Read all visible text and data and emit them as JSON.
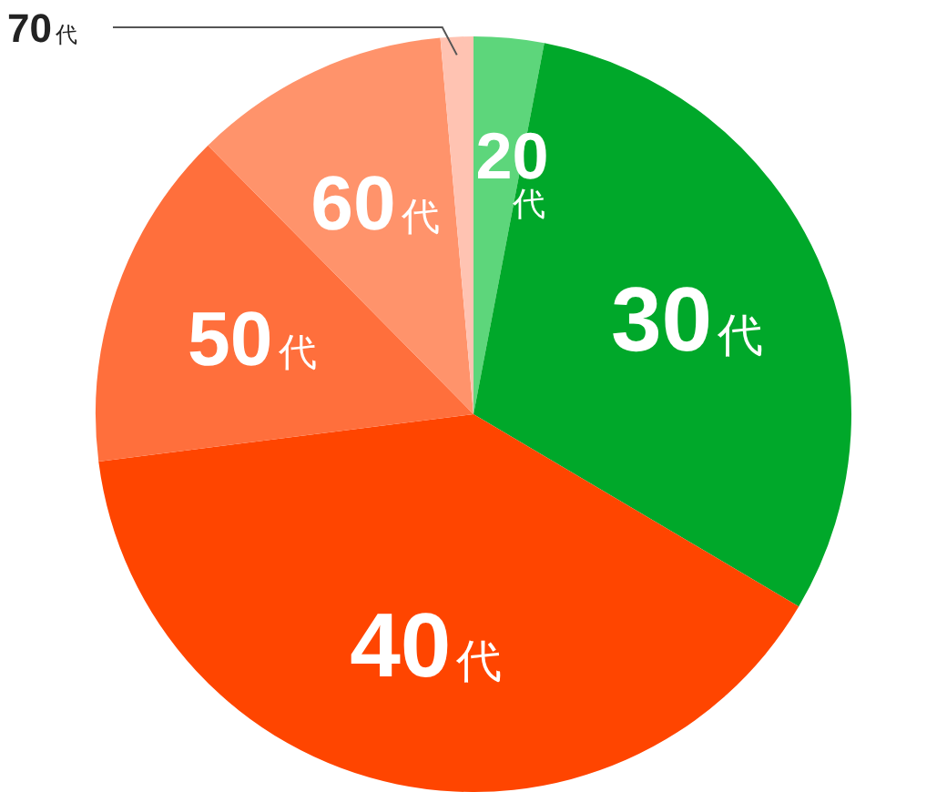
{
  "chart_data": {
    "type": "pie",
    "categories": [
      "20代",
      "30代",
      "40代",
      "50代",
      "60代",
      "70代"
    ],
    "values": [
      3,
      30.5,
      39.5,
      14.6,
      11,
      1.4
    ],
    "colors": [
      "#5dd67b",
      "#00a82a",
      "#ff4500",
      "#ff6f3c",
      "#ff936b",
      "#ffc3b2"
    ],
    "legend": false
  }
}
